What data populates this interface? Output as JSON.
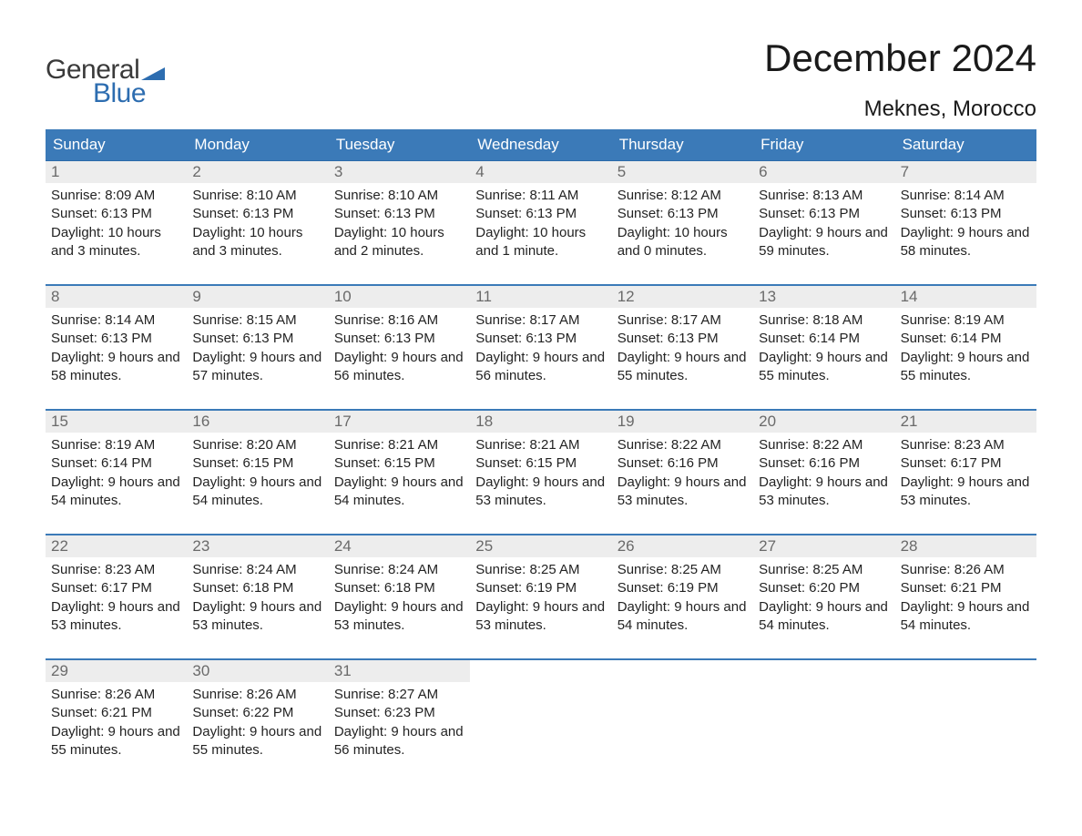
{
  "logo": {
    "top": "General",
    "bottom": "Blue",
    "flag_color": "#2d6db0"
  },
  "title": "December 2024",
  "location": "Meknes, Morocco",
  "colors": {
    "header_bg": "#3b7ab8",
    "header_text": "#ffffff",
    "week_border": "#3b7ab8",
    "daynum_bg": "#ededed",
    "daynum_text": "#6a6a6a",
    "body_text": "#232323",
    "page_bg": "#ffffff"
  },
  "weekdays": [
    "Sunday",
    "Monday",
    "Tuesday",
    "Wednesday",
    "Thursday",
    "Friday",
    "Saturday"
  ],
  "weeks": [
    [
      {
        "n": "1",
        "sunrise": "8:09 AM",
        "sunset": "6:13 PM",
        "daylight": "10 hours and 3 minutes."
      },
      {
        "n": "2",
        "sunrise": "8:10 AM",
        "sunset": "6:13 PM",
        "daylight": "10 hours and 3 minutes."
      },
      {
        "n": "3",
        "sunrise": "8:10 AM",
        "sunset": "6:13 PM",
        "daylight": "10 hours and 2 minutes."
      },
      {
        "n": "4",
        "sunrise": "8:11 AM",
        "sunset": "6:13 PM",
        "daylight": "10 hours and 1 minute."
      },
      {
        "n": "5",
        "sunrise": "8:12 AM",
        "sunset": "6:13 PM",
        "daylight": "10 hours and 0 minutes."
      },
      {
        "n": "6",
        "sunrise": "8:13 AM",
        "sunset": "6:13 PM",
        "daylight": "9 hours and 59 minutes."
      },
      {
        "n": "7",
        "sunrise": "8:14 AM",
        "sunset": "6:13 PM",
        "daylight": "9 hours and 58 minutes."
      }
    ],
    [
      {
        "n": "8",
        "sunrise": "8:14 AM",
        "sunset": "6:13 PM",
        "daylight": "9 hours and 58 minutes."
      },
      {
        "n": "9",
        "sunrise": "8:15 AM",
        "sunset": "6:13 PM",
        "daylight": "9 hours and 57 minutes."
      },
      {
        "n": "10",
        "sunrise": "8:16 AM",
        "sunset": "6:13 PM",
        "daylight": "9 hours and 56 minutes."
      },
      {
        "n": "11",
        "sunrise": "8:17 AM",
        "sunset": "6:13 PM",
        "daylight": "9 hours and 56 minutes."
      },
      {
        "n": "12",
        "sunrise": "8:17 AM",
        "sunset": "6:13 PM",
        "daylight": "9 hours and 55 minutes."
      },
      {
        "n": "13",
        "sunrise": "8:18 AM",
        "sunset": "6:14 PM",
        "daylight": "9 hours and 55 minutes."
      },
      {
        "n": "14",
        "sunrise": "8:19 AM",
        "sunset": "6:14 PM",
        "daylight": "9 hours and 55 minutes."
      }
    ],
    [
      {
        "n": "15",
        "sunrise": "8:19 AM",
        "sunset": "6:14 PM",
        "daylight": "9 hours and 54 minutes."
      },
      {
        "n": "16",
        "sunrise": "8:20 AM",
        "sunset": "6:15 PM",
        "daylight": "9 hours and 54 minutes."
      },
      {
        "n": "17",
        "sunrise": "8:21 AM",
        "sunset": "6:15 PM",
        "daylight": "9 hours and 54 minutes."
      },
      {
        "n": "18",
        "sunrise": "8:21 AM",
        "sunset": "6:15 PM",
        "daylight": "9 hours and 53 minutes."
      },
      {
        "n": "19",
        "sunrise": "8:22 AM",
        "sunset": "6:16 PM",
        "daylight": "9 hours and 53 minutes."
      },
      {
        "n": "20",
        "sunrise": "8:22 AM",
        "sunset": "6:16 PM",
        "daylight": "9 hours and 53 minutes."
      },
      {
        "n": "21",
        "sunrise": "8:23 AM",
        "sunset": "6:17 PM",
        "daylight": "9 hours and 53 minutes."
      }
    ],
    [
      {
        "n": "22",
        "sunrise": "8:23 AM",
        "sunset": "6:17 PM",
        "daylight": "9 hours and 53 minutes."
      },
      {
        "n": "23",
        "sunrise": "8:24 AM",
        "sunset": "6:18 PM",
        "daylight": "9 hours and 53 minutes."
      },
      {
        "n": "24",
        "sunrise": "8:24 AM",
        "sunset": "6:18 PM",
        "daylight": "9 hours and 53 minutes."
      },
      {
        "n": "25",
        "sunrise": "8:25 AM",
        "sunset": "6:19 PM",
        "daylight": "9 hours and 53 minutes."
      },
      {
        "n": "26",
        "sunrise": "8:25 AM",
        "sunset": "6:19 PM",
        "daylight": "9 hours and 54 minutes."
      },
      {
        "n": "27",
        "sunrise": "8:25 AM",
        "sunset": "6:20 PM",
        "daylight": "9 hours and 54 minutes."
      },
      {
        "n": "28",
        "sunrise": "8:26 AM",
        "sunset": "6:21 PM",
        "daylight": "9 hours and 54 minutes."
      }
    ],
    [
      {
        "n": "29",
        "sunrise": "8:26 AM",
        "sunset": "6:21 PM",
        "daylight": "9 hours and 55 minutes."
      },
      {
        "n": "30",
        "sunrise": "8:26 AM",
        "sunset": "6:22 PM",
        "daylight": "9 hours and 55 minutes."
      },
      {
        "n": "31",
        "sunrise": "8:27 AM",
        "sunset": "6:23 PM",
        "daylight": "9 hours and 56 minutes."
      },
      null,
      null,
      null,
      null
    ]
  ],
  "labels": {
    "sunrise": "Sunrise:",
    "sunset": "Sunset:",
    "daylight": "Daylight:"
  }
}
